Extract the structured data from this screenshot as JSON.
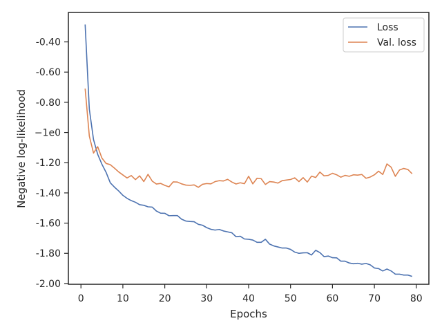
{
  "chart_data": {
    "type": "line",
    "xlabel": "Epochs",
    "ylabel": "Negative log-likelihood",
    "xlim": [
      -3,
      83
    ],
    "ylim": [
      -2.005,
      -0.205
    ],
    "xticks": [
      0,
      10,
      20,
      30,
      40,
      50,
      60,
      70,
      80
    ],
    "xtick_labels": [
      "0",
      "10",
      "20",
      "30",
      "40",
      "50",
      "60",
      "70",
      "80"
    ],
    "yticks": [
      -0.4,
      -0.6,
      -0.8,
      -1.0,
      -1.2,
      -1.4,
      -1.6,
      -1.8,
      -2.0
    ],
    "ytick_labels": [
      "-0.40",
      "-0.60",
      "-0.80",
      "−1e0",
      "-1.20",
      "-1.40",
      "-1.60",
      "-1.80",
      "-2.00"
    ],
    "grid": false,
    "legend_position": "top-right",
    "x": [
      1,
      2,
      3,
      4,
      5,
      6,
      7,
      8,
      9,
      10,
      11,
      12,
      13,
      14,
      15,
      16,
      17,
      18,
      19,
      20,
      21,
      22,
      23,
      24,
      25,
      26,
      27,
      28,
      29,
      30,
      31,
      32,
      33,
      34,
      35,
      36,
      37,
      38,
      39,
      40,
      41,
      42,
      43,
      44,
      45,
      46,
      47,
      48,
      49,
      50,
      51,
      52,
      53,
      54,
      55,
      56,
      57,
      58,
      59,
      60,
      61,
      62,
      63,
      64,
      65,
      66,
      67,
      68,
      69,
      70,
      71,
      72,
      73,
      74,
      75,
      76,
      77,
      78,
      79
    ],
    "series": [
      {
        "name": "Loss",
        "color": "#4c72b0",
        "values": [
          -0.285,
          -0.846,
          -1.047,
          -1.145,
          -1.21,
          -1.264,
          -1.333,
          -1.362,
          -1.387,
          -1.416,
          -1.436,
          -1.451,
          -1.462,
          -1.478,
          -1.482,
          -1.492,
          -1.494,
          -1.52,
          -1.534,
          -1.535,
          -1.551,
          -1.55,
          -1.55,
          -1.574,
          -1.586,
          -1.589,
          -1.591,
          -1.608,
          -1.614,
          -1.63,
          -1.641,
          -1.646,
          -1.642,
          -1.652,
          -1.658,
          -1.664,
          -1.69,
          -1.687,
          -1.705,
          -1.707,
          -1.712,
          -1.727,
          -1.727,
          -1.707,
          -1.739,
          -1.751,
          -1.758,
          -1.765,
          -1.765,
          -1.774,
          -1.792,
          -1.8,
          -1.797,
          -1.796,
          -1.811,
          -1.78,
          -1.795,
          -1.822,
          -1.818,
          -1.829,
          -1.83,
          -1.852,
          -1.852,
          -1.864,
          -1.869,
          -1.866,
          -1.872,
          -1.867,
          -1.876,
          -1.897,
          -1.901,
          -1.917,
          -1.904,
          -1.917,
          -1.938,
          -1.938,
          -1.944,
          -1.944,
          -1.953
        ]
      },
      {
        "name": "Val. loss",
        "color": "#dd8452",
        "values": [
          -0.709,
          -1.024,
          -1.136,
          -1.094,
          -1.169,
          -1.205,
          -1.213,
          -1.236,
          -1.261,
          -1.281,
          -1.301,
          -1.285,
          -1.312,
          -1.287,
          -1.325,
          -1.277,
          -1.322,
          -1.341,
          -1.337,
          -1.35,
          -1.36,
          -1.327,
          -1.328,
          -1.34,
          -1.348,
          -1.35,
          -1.347,
          -1.363,
          -1.343,
          -1.338,
          -1.34,
          -1.325,
          -1.319,
          -1.321,
          -1.31,
          -1.328,
          -1.341,
          -1.333,
          -1.339,
          -1.29,
          -1.34,
          -1.303,
          -1.306,
          -1.344,
          -1.325,
          -1.328,
          -1.335,
          -1.319,
          -1.315,
          -1.311,
          -1.3,
          -1.325,
          -1.299,
          -1.328,
          -1.289,
          -1.298,
          -1.262,
          -1.287,
          -1.284,
          -1.27,
          -1.28,
          -1.296,
          -1.284,
          -1.29,
          -1.28,
          -1.282,
          -1.278,
          -1.303,
          -1.295,
          -1.28,
          -1.256,
          -1.278,
          -1.208,
          -1.23,
          -1.29,
          -1.248,
          -1.238,
          -1.245,
          -1.273
        ]
      }
    ]
  }
}
